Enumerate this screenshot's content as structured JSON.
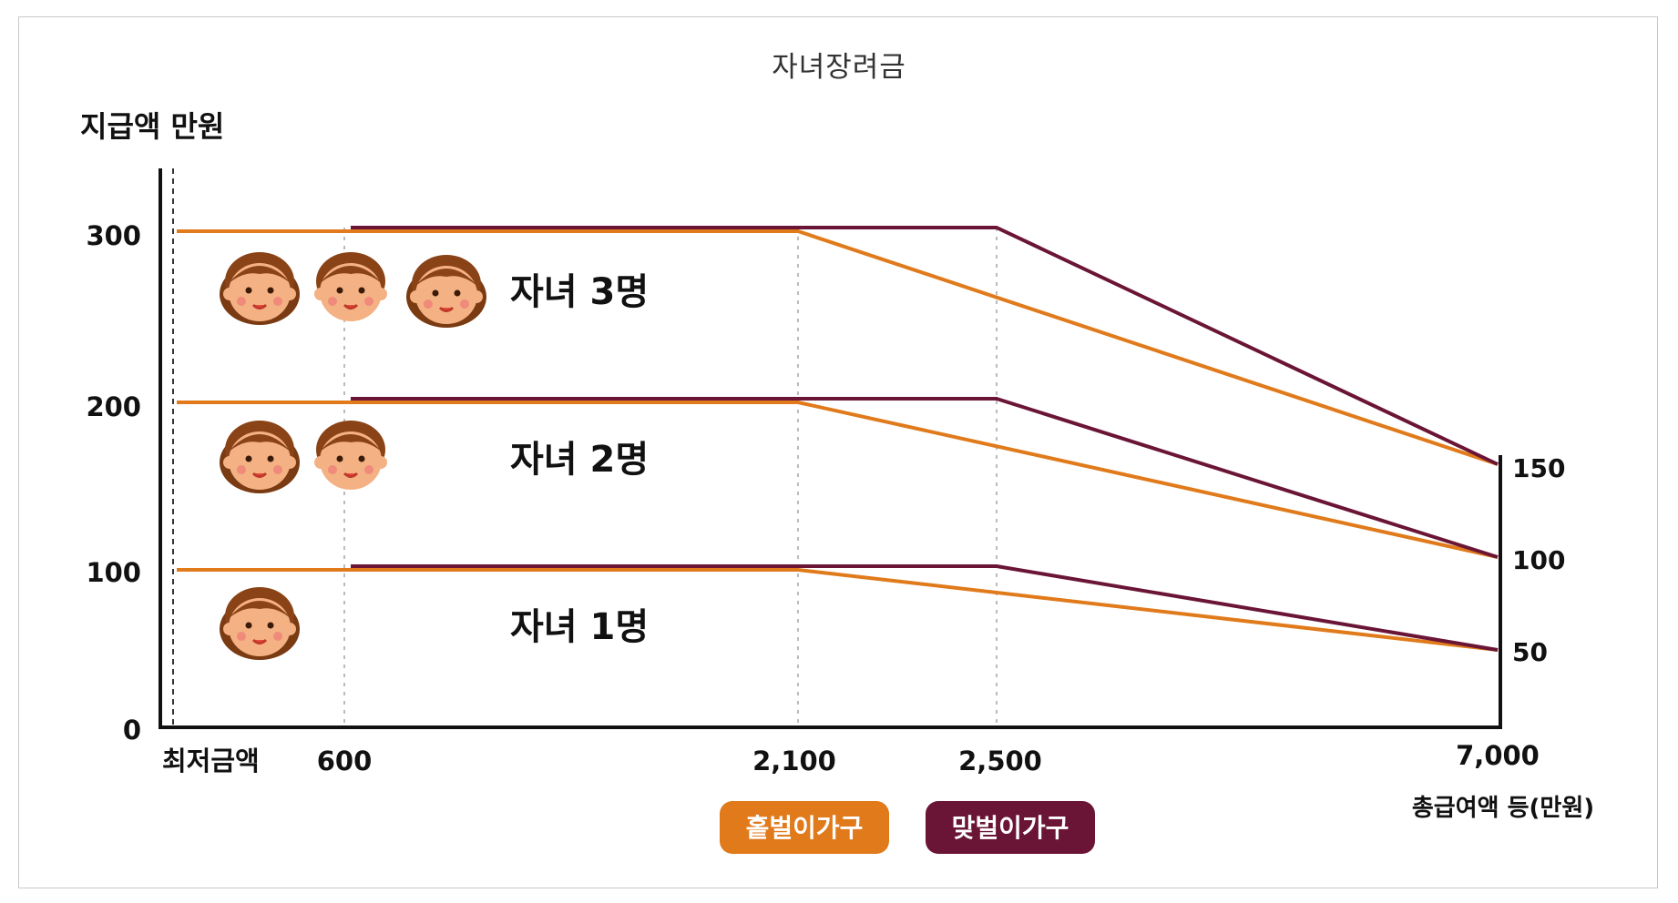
{
  "chart_data": {
    "type": "line",
    "title": "자녀장려금",
    "ylabel": "지급액 만원",
    "xlabel": "총급여액 등(만원)",
    "x_ticks": [
      "최저금액",
      "600",
      "2,100",
      "2,500",
      "7,000"
    ],
    "y_ticks_left": [
      "0",
      "100",
      "200",
      "300"
    ],
    "y_ticks_right": [
      "50",
      "100",
      "150"
    ],
    "ylim": [
      0,
      300
    ],
    "row_labels": [
      "자녀 3명",
      "자녀 2명",
      "자녀 1명"
    ],
    "colors": {
      "single": "#e07a1b",
      "dual": "#6b1536"
    },
    "legend": [
      {
        "name": "홑벌이가구",
        "color": "#e07a1b"
      },
      {
        "name": "맞벌이가구",
        "color": "#6b1536"
      }
    ],
    "series": [
      {
        "name": "홑벌이가구",
        "group": "자녀 3명",
        "x": [
          0,
          600,
          2100,
          7000
        ],
        "y": [
          300,
          300,
          300,
          150
        ]
      },
      {
        "name": "맞벌이가구",
        "group": "자녀 3명",
        "x": [
          600,
          2500,
          7000
        ],
        "y": [
          300,
          300,
          150
        ]
      },
      {
        "name": "홑벌이가구",
        "group": "자녀 2명",
        "x": [
          0,
          600,
          2100,
          7000
        ],
        "y": [
          200,
          200,
          200,
          100
        ]
      },
      {
        "name": "맞벌이가구",
        "group": "자녀 2명",
        "x": [
          600,
          2500,
          7000
        ],
        "y": [
          200,
          200,
          100
        ]
      },
      {
        "name": "홑벌이가구",
        "group": "자녀 1명",
        "x": [
          0,
          600,
          2100,
          7000
        ],
        "y": [
          100,
          100,
          100,
          50
        ]
      },
      {
        "name": "맞벌이가구",
        "group": "자녀 1명",
        "x": [
          600,
          2500,
          7000
        ],
        "y": [
          100,
          100,
          50
        ]
      }
    ]
  }
}
